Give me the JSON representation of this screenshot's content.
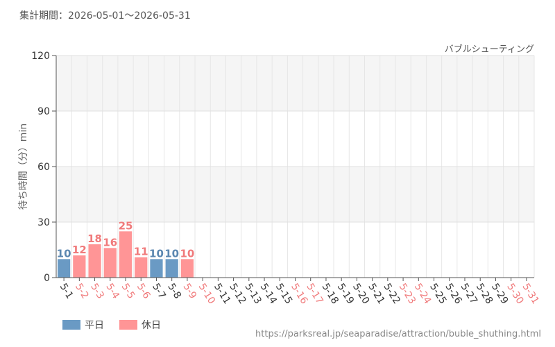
{
  "header": {
    "period": "集計期間：2026-05-01～2026-05-31",
    "url": "https://parksreal.jp/seaparadise/attraction/buble_shuthing.html"
  },
  "legend": {
    "weekday_label": "平日",
    "holiday_label": "休日"
  },
  "colors": {
    "weekday": "#6a9ac4",
    "holiday": "#ff9596",
    "weekday_text": "#5b87b0",
    "holiday_text": "#f07a7b"
  },
  "chart_data": {
    "type": "bar",
    "title": "バブルシューティング",
    "ylabel": "待ち時間（分）min",
    "xlabel": "",
    "ylim": [
      0,
      120
    ],
    "yticks": [
      0,
      30,
      60,
      90,
      120
    ],
    "grid": true,
    "legend_position": "bottom-left",
    "categories": [
      "5-1",
      "5-2",
      "5-3",
      "5-4",
      "5-5",
      "5-6",
      "5-7",
      "5-8",
      "5-9",
      "5-10",
      "5-11",
      "5-12",
      "5-13",
      "5-14",
      "5-15",
      "5-16",
      "5-17",
      "5-18",
      "5-19",
      "5-20",
      "5-21",
      "5-22",
      "5-23",
      "5-24",
      "5-25",
      "5-26",
      "5-27",
      "5-28",
      "5-29",
      "5-30",
      "5-31"
    ],
    "day_type": [
      "weekday",
      "holiday",
      "holiday",
      "holiday",
      "holiday",
      "holiday",
      "weekday",
      "weekday",
      "holiday",
      "holiday",
      "weekday",
      "weekday",
      "weekday",
      "weekday",
      "weekday",
      "holiday",
      "holiday",
      "weekday",
      "weekday",
      "weekday",
      "weekday",
      "weekday",
      "holiday",
      "holiday",
      "weekday",
      "weekday",
      "weekday",
      "weekday",
      "weekday",
      "holiday",
      "holiday"
    ],
    "values": [
      10,
      12,
      18,
      16,
      25,
      11,
      10,
      10,
      10,
      null,
      null,
      null,
      null,
      null,
      null,
      null,
      null,
      null,
      null,
      null,
      null,
      null,
      null,
      null,
      null,
      null,
      null,
      null,
      null,
      null,
      null
    ]
  }
}
